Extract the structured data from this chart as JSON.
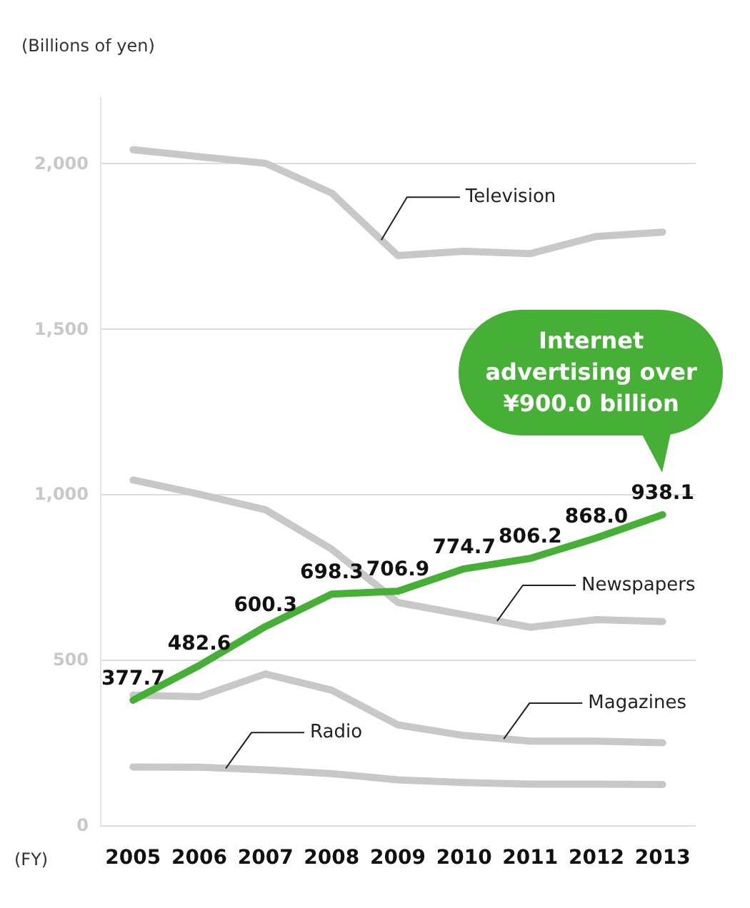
{
  "chart_data": {
    "type": "line",
    "ylabel": "(Billions of yen)",
    "xlabel": "(FY)",
    "categories": [
      "2005",
      "2006",
      "2007",
      "2008",
      "2009",
      "2010",
      "2011",
      "2012",
      "2013"
    ],
    "ylim": [
      0,
      2200
    ],
    "yticks": [
      0,
      {
        "value": 500,
        "label": "500"
      },
      {
        "value": 1000,
        "label": "1,000"
      },
      {
        "value": 1500,
        "label": "1,500"
      },
      {
        "value": 2000,
        "label": "2,000"
      }
    ],
    "grid": "y",
    "legend": false,
    "marker": "none",
    "line_style": "solid",
    "series": [
      {
        "name": "Television",
        "color": "#c8c8c8",
        "values": [
          2041,
          2020,
          2000,
          1910,
          1721,
          1734,
          1727,
          1779,
          1792
        ]
      },
      {
        "name": "Newspapers",
        "color": "#c8c8c8",
        "values": [
          1043,
          1000,
          953,
          834,
          673,
          636,
          598,
          621,
          615
        ]
      },
      {
        "name": "Magazines",
        "color": "#c8c8c8",
        "values": [
          393,
          388,
          457,
          408,
          303,
          271,
          254,
          254,
          249
        ]
      },
      {
        "name": "Radio",
        "color": "#c8c8c8",
        "values": [
          176,
          175,
          167,
          156,
          137,
          129,
          124,
          124,
          123
        ]
      },
      {
        "color": "#45b035",
        "values": [
          377.7,
          482.6,
          600.3,
          698.3,
          706.9,
          774.7,
          806.2,
          868.0,
          938.1
        ],
        "value_labels": [
          "377.7",
          "482.6",
          "600.3",
          "698.3",
          "706.9",
          "774.7",
          "806.2",
          "868.0",
          "938.1"
        ]
      }
    ],
    "annotations": [
      "Internet advertising over ¥900.0 billion"
    ]
  }
}
